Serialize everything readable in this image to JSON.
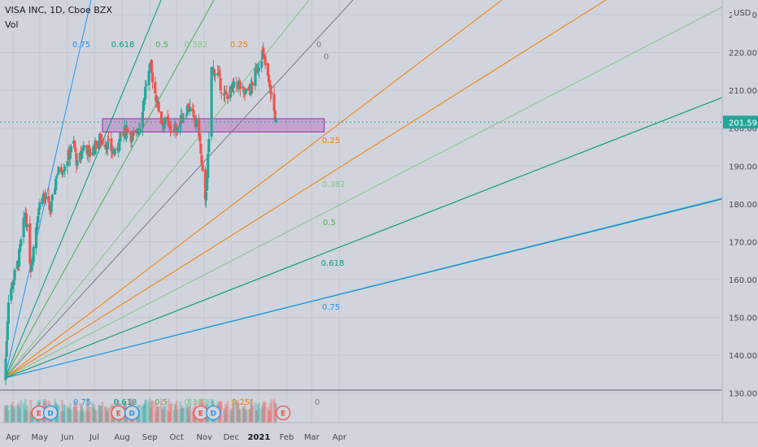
{
  "header": {
    "symbol_title": "VISA INC, 1D, Cboe BZX",
    "volume_label": "Vol"
  },
  "chart_data": {
    "type": "candlestick",
    "title": "VISA INC, 1D, Cboe BZX",
    "price_axis": {
      "unit": "USD",
      "range": [
        125,
        233
      ],
      "ticks": [
        130,
        140,
        150,
        160,
        170,
        180,
        190,
        200,
        210,
        220,
        230
      ],
      "tick_labels": [
        "130.00",
        "140.00",
        "150.00",
        "160.00",
        "170.00",
        "180.00",
        "190.00",
        "200.00",
        "210.00",
        "220.00",
        "230.00"
      ],
      "current_price": 201.59,
      "current_price_label": "201.59"
    },
    "time_axis": {
      "labels": [
        "Apr",
        "May",
        "Jun",
        "Jul",
        "Aug",
        "Sep",
        "Oct",
        "Nov",
        "Dec",
        "2021",
        "Feb",
        "Mar",
        "Apr"
      ]
    },
    "price_path": [
      [
        "2020-03-23",
        134
      ],
      [
        "2020-03-27",
        155
      ],
      [
        "2020-04-07",
        165
      ],
      [
        "2020-04-15",
        178
      ],
      [
        "2020-04-21",
        163
      ],
      [
        "2020-04-29",
        178
      ],
      [
        "2020-05-04",
        183
      ],
      [
        "2020-05-13",
        178
      ],
      [
        "2020-05-20",
        188
      ],
      [
        "2020-05-28",
        190
      ],
      [
        "2020-06-08",
        196
      ],
      [
        "2020-06-12",
        190
      ],
      [
        "2020-06-20",
        196
      ],
      [
        "2020-06-26",
        193
      ],
      [
        "2020-07-06",
        197
      ],
      [
        "2020-07-15",
        196
      ],
      [
        "2020-07-24",
        193
      ],
      [
        "2020-07-31",
        198
      ],
      [
        "2020-08-07",
        200
      ],
      [
        "2020-08-14",
        197
      ],
      [
        "2020-08-21",
        201
      ],
      [
        "2020-08-28",
        212
      ],
      [
        "2020-09-02",
        216
      ],
      [
        "2020-09-08",
        208
      ],
      [
        "2020-09-14",
        202
      ],
      [
        "2020-09-21",
        201
      ],
      [
        "2020-09-28",
        199
      ],
      [
        "2020-10-08",
        203
      ],
      [
        "2020-10-14",
        206
      ],
      [
        "2020-10-21",
        202
      ],
      [
        "2020-10-26",
        199
      ],
      [
        "2020-10-29",
        190
      ],
      [
        "2020-11-02",
        180
      ],
      [
        "2020-11-06",
        196
      ],
      [
        "2020-11-09",
        216
      ],
      [
        "2020-11-16",
        214
      ],
      [
        "2020-11-23",
        208
      ],
      [
        "2020-12-01",
        210
      ],
      [
        "2020-12-08",
        212
      ],
      [
        "2020-12-15",
        209
      ],
      [
        "2020-12-22",
        210
      ],
      [
        "2020-12-29",
        215
      ],
      [
        "2021-01-05",
        220
      ],
      [
        "2021-01-11",
        213
      ],
      [
        "2021-01-14",
        210
      ],
      [
        "2021-01-19",
        203
      ],
      [
        "2021-01-20",
        201.59
      ]
    ],
    "support_zone": {
      "from": "2020-07-10",
      "to": "2021-03-15",
      "low": 199,
      "high": 202.5
    },
    "fib_fan": {
      "origin": [
        "2020-03-23",
        134
      ],
      "levels": [
        {
          "label": "0.75",
          "color": "#2196f3"
        },
        {
          "label": "0.618",
          "color": "#089981"
        },
        {
          "label": "0.5",
          "color": "#4caf50"
        },
        {
          "label": "0.382",
          "color": "#81c784"
        },
        {
          "label": "0.25",
          "color": "#f57c00"
        },
        {
          "label": "0",
          "color": "#787b86"
        }
      ],
      "lower_labels": [
        "0.25",
        "0.382",
        "0.5",
        "0.618",
        "0.75"
      ]
    },
    "events": [
      {
        "letter": "E",
        "kind": "earnings"
      },
      {
        "letter": "D",
        "kind": "dividend"
      },
      {
        "letter": "E",
        "kind": "earnings"
      },
      {
        "letter": "D",
        "kind": "dividend"
      },
      {
        "letter": "E",
        "kind": "earnings"
      },
      {
        "letter": "D",
        "kind": "dividend"
      },
      {
        "letter": "E",
        "kind": "earnings"
      }
    ],
    "colors": {
      "background": "#d1d4dc",
      "up": "#26a69a",
      "down": "#ef5350",
      "support_zone": "#9c27b0",
      "price_badge": "#26a69a"
    }
  }
}
